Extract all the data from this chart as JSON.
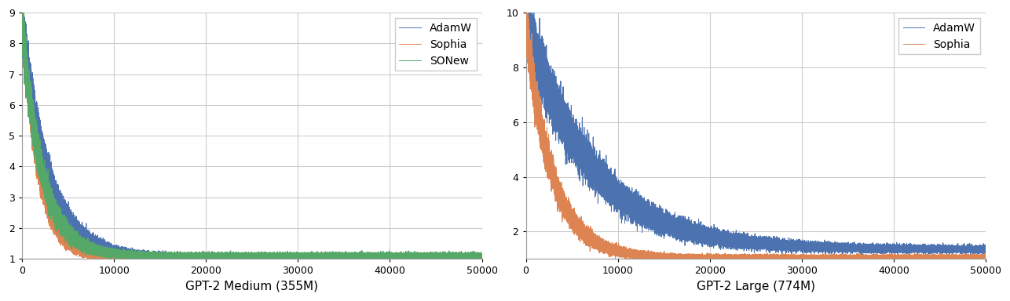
{
  "fig_width": 12.86,
  "fig_height": 3.84,
  "dpi": 100,
  "left_title": "GPT-2 Medium (355M)",
  "right_title": "GPT-2 Large (774M)",
  "left_xlim": [
    0,
    50000
  ],
  "right_xlim": [
    0,
    50000
  ],
  "left_ylim": [
    1,
    9
  ],
  "right_ylim": [
    1,
    10
  ],
  "left_yticks": [
    1,
    2,
    3,
    4,
    5,
    6,
    7,
    8,
    9
  ],
  "right_yticks": [
    2,
    4,
    6,
    8,
    10
  ],
  "left_xticks": [
    0,
    10000,
    20000,
    30000,
    40000,
    50000
  ],
  "right_xticks": [
    0,
    10000,
    20000,
    30000,
    40000,
    50000
  ],
  "colors": {
    "AdamW": "#4c72b0",
    "Sophia": "#dd8452",
    "SONew": "#55a868"
  },
  "linewidth": 0.7,
  "background_color": "#ffffff",
  "grid_color": "#cccccc",
  "legend_fontsize": 10,
  "xlabel_fontsize": 11,
  "tick_fontsize": 9,
  "n_steps": 50000,
  "seed": 42
}
